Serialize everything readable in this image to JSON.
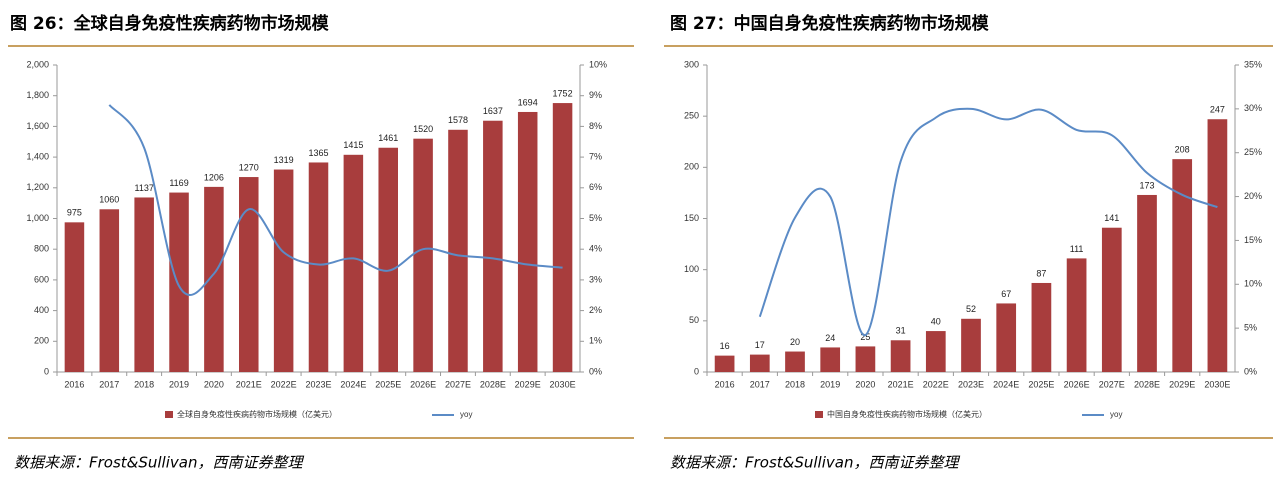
{
  "chart_data": [
    {
      "type": "bar",
      "title": "图 26：全球自身免疫性疾病药物市场规模",
      "source": "数据来源：Frost&Sullivan，西南证券整理",
      "categories": [
        "2016",
        "2017",
        "2018",
        "2019",
        "2020",
        "2021E",
        "2022E",
        "2023E",
        "2024E",
        "2025E",
        "2026E",
        "2027E",
        "2028E",
        "2029E",
        "2030E"
      ],
      "series": [
        {
          "name": "全球自身免疫性疾病药物市场规模（亿美元）",
          "type": "bar",
          "color": "#a83d3d",
          "values": [
            975,
            1060,
            1137,
            1169,
            1206,
            1270,
            1319,
            1365,
            1415,
            1461,
            1520,
            1578,
            1637,
            1694,
            1752
          ]
        },
        {
          "name": "yoy",
          "type": "line",
          "axis": "y2",
          "color": "#5b8bc6",
          "values": [
            null,
            8.7,
            7.3,
            2.8,
            3.2,
            5.3,
            3.9,
            3.5,
            3.7,
            3.3,
            4.0,
            3.8,
            3.7,
            3.5,
            3.4
          ]
        }
      ],
      "ylim": [
        0,
        2000
      ],
      "yticks": [
        0,
        200,
        400,
        600,
        800,
        {
          "value": 1000,
          "label": "1,000"
        },
        {
          "value": 1200,
          "label": "1,200"
        },
        {
          "value": 1400,
          "label": "1,400"
        },
        {
          "value": 1600,
          "label": "1,600"
        },
        {
          "value": 1800,
          "label": "1,800"
        },
        {
          "value": 2000,
          "label": "2,000"
        }
      ],
      "y2lim": [
        0,
        10
      ],
      "y2ticks": [
        {
          "value": 0,
          "label": "0%"
        },
        {
          "value": 1,
          "label": "1%"
        },
        {
          "value": 2,
          "label": "2%"
        },
        {
          "value": 3,
          "label": "3%"
        },
        {
          "value": 4,
          "label": "4%"
        },
        {
          "value": 5,
          "label": "5%"
        },
        {
          "value": 6,
          "label": "6%"
        },
        {
          "value": 7,
          "label": "7%"
        },
        {
          "value": 8,
          "label": "8%"
        },
        {
          "value": 9,
          "label": "9%"
        },
        {
          "value": 10,
          "label": "10%"
        }
      ],
      "grid": false
    },
    {
      "type": "bar",
      "title": "图 27：中国自身免疫性疾病药物市场规模",
      "source": "数据来源：Frost&Sullivan，西南证券整理",
      "categories": [
        "2016",
        "2017",
        "2018",
        "2019",
        "2020",
        "2021E",
        "2022E",
        "2023E",
        "2024E",
        "2025E",
        "2026E",
        "2027E",
        "2028E",
        "2029E",
        "2030E"
      ],
      "series": [
        {
          "name": "中国自身免疫性疾病药物市场规模（亿美元）",
          "type": "bar",
          "color": "#a83d3d",
          "values": [
            16,
            17,
            20,
            24,
            25,
            31,
            40,
            52,
            67,
            87,
            111,
            141,
            173,
            208,
            247
          ]
        },
        {
          "name": "yoy",
          "type": "line",
          "axis": "y2",
          "color": "#5b8bc6",
          "values": [
            null,
            6.3,
            17.6,
            20.0,
            4.2,
            24.0,
            29.0,
            30.0,
            28.8,
            29.9,
            27.6,
            27.0,
            22.7,
            20.2,
            18.8
          ]
        }
      ],
      "ylim": [
        0,
        300
      ],
      "yticks": [
        0,
        50,
        100,
        150,
        200,
        250,
        300
      ],
      "y2lim": [
        0,
        35
      ],
      "y2ticks": [
        {
          "value": 0,
          "label": "0%"
        },
        {
          "value": 5,
          "label": "5%"
        },
        {
          "value": 10,
          "label": "10%"
        },
        {
          "value": 15,
          "label": "15%"
        },
        {
          "value": 20,
          "label": "20%"
        },
        {
          "value": 25,
          "label": "25%"
        },
        {
          "value": 30,
          "label": "30%"
        },
        {
          "value": 35,
          "label": "35%"
        }
      ],
      "grid": false
    }
  ]
}
